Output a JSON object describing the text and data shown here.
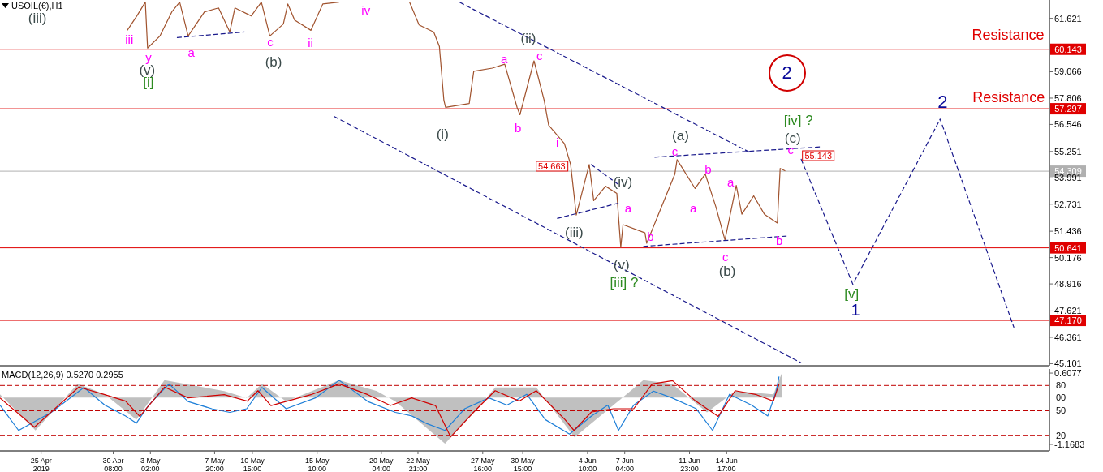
{
  "chart_data": [
    {
      "type": "line",
      "title": "USOIL(€),H1",
      "marker": "none",
      "tick_labels": "y",
      "xlim": [
        "2019-04-21T23:00",
        "2019-07-08T14:00"
      ],
      "xticks": [
        {
          "value": "2019-04-25T00:00",
          "label": null
        },
        {
          "value": "2019-04-30T08:00",
          "label": null
        },
        {
          "value": "2019-05-03T02:00",
          "label": null
        },
        {
          "value": "2019-05-07T20:00",
          "label": null
        },
        {
          "value": "2019-05-10T15:00",
          "label": null
        },
        {
          "value": "2019-05-15T10:00",
          "label": null
        },
        {
          "value": "2019-05-20T04:00",
          "label": null
        },
        {
          "value": "2019-05-22T21:00",
          "label": null
        },
        {
          "value": "2019-05-27T16:00",
          "label": null
        },
        {
          "value": "2019-05-30T15:00",
          "label": null
        },
        {
          "value": "2019-06-04T10:00",
          "label": null
        },
        {
          "value": "2019-06-07T04:00",
          "label": null
        },
        {
          "value": "2019-06-11T23:00",
          "label": null
        },
        {
          "value": "2019-06-14T17:00",
          "label": null
        }
      ],
      "ylim": [
        45.0,
        62.5
      ],
      "yticks": [
        61.621,
        59.066,
        57.806,
        56.546,
        55.251,
        53.991,
        52.731,
        51.436,
        50.176,
        48.916,
        47.621,
        46.361,
        45.101
      ],
      "ref_lines": [
        {
          "axis": "y",
          "value": 60.143,
          "label": "60.143",
          "color": "#e00000"
        },
        {
          "axis": "y",
          "value": 57.297,
          "label": "57.297",
          "color": "#e00000"
        },
        {
          "axis": "y",
          "value": 50.641,
          "label": "50.641",
          "color": "#e00000"
        },
        {
          "axis": "y",
          "value": 47.17,
          "label": "47.170",
          "color": "#e00000"
        },
        {
          "axis": "y",
          "value": 54.309,
          "label": "54.309",
          "color": "#b0b0b0"
        }
      ],
      "series": [
        {
          "type": "line",
          "color": "#a0522d",
          "line_style": "solid",
          "x": [
            "2019-05-01T09:00",
            "2019-05-02T02:00",
            "2019-05-02T17:00",
            "2019-05-02T21:00",
            "2019-05-03T19:00",
            "2019-05-04T16:00",
            "2019-05-05T06:00",
            "2019-05-05T21:00",
            "2019-05-07T02:00",
            "2019-05-08T03:00",
            "2019-05-08T23:00",
            "2019-05-09T08:00",
            "2019-05-10T13:00",
            "2019-05-11T07:00",
            "2019-05-11T22:00",
            "2019-05-12T22:00",
            "2019-05-13T06:00",
            "2019-05-13T18:00",
            "2019-05-14T23:00",
            "2019-05-15T20:00",
            "2019-05-17T01:00",
            "2019-05-20T06:00",
            "2019-05-22T06:00",
            "2019-05-22T23:00",
            "2019-05-24T01:00",
            "2019-05-24T11:00",
            "2019-05-24T19:00",
            "2019-05-24T22:00",
            "2019-05-26T16:00",
            "2019-05-27T00:00",
            "2019-05-28T09:00",
            "2019-05-29T07:00",
            "2019-05-30T05:00",
            "2019-05-30T10:00",
            "2019-05-31T11:00",
            "2019-06-01T05:00",
            "2019-06-01T13:00",
            "2019-06-02T17:00",
            "2019-06-03T04:00",
            "2019-06-03T14:00",
            "2019-06-04T13:00",
            "2019-06-04T21:00",
            "2019-06-05T18:00",
            "2019-06-06T14:00",
            "2019-06-06T21:00",
            "2019-06-07T01:00",
            "2019-06-08T16:00",
            "2019-06-08T19:00",
            "2019-06-10T21:00",
            "2019-06-11T01:00",
            "2019-06-12T09:00",
            "2019-06-13T03:00",
            "2019-06-13T22:00",
            "2019-06-14T14:00",
            "2019-06-15T10:00",
            "2019-06-15T20:00",
            "2019-06-16T17:00",
            "2019-06-17T12:00",
            "2019-06-18T11:00",
            "2019-06-18T16:00",
            "2019-06-19T01:00"
          ],
          "values": [
            61.05,
            61.74,
            62.4,
            60.2,
            60.78,
            61.93,
            62.4,
            60.78,
            61.93,
            62.12,
            60.97,
            62.12,
            61.74,
            62.4,
            60.78,
            61.35,
            62.31,
            61.54,
            61.05,
            62.31,
            62.4,
            null,
            62.4,
            61.31,
            60.97,
            60.28,
            57.7,
            57.36,
            57.55,
            59.09,
            59.24,
            59.43,
            57.36,
            57.01,
            59.59,
            57.7,
            56.51,
            55.63,
            54.63,
            52.21,
            54.63,
            52.9,
            53.59,
            53.25,
            50.67,
            51.75,
            51.36,
            50.86,
            54.17,
            54.86,
            53.48,
            54.17,
            52.59,
            51.02,
            53.63,
            52.25,
            53.13,
            52.25,
            51.83,
            54.44,
            54.32
          ]
        },
        {
          "type": "line",
          "color": "#1a1a8c",
          "line_style": "dashed",
          "x": [
            "2019-06-20T05:00",
            "2019-06-24T01:00",
            "2019-06-30T12:00",
            "2019-07-05T23:00"
          ],
          "values": [
            54.9,
            48.9,
            56.8,
            46.83
          ]
        },
        {
          "type": "line",
          "color": "#1a1a8c",
          "line_style": "dashed",
          "x": [
            "2019-05-25T23:00",
            "2019-06-16T10:00"
          ],
          "values": [
            62.39,
            55.21
          ]
        },
        {
          "type": "line",
          "color": "#1a1a8c",
          "line_style": "dashed",
          "x": [
            "2019-05-16T16:00",
            "2019-06-20T05:00"
          ],
          "values": [
            56.93,
            45.14
          ]
        },
        {
          "type": "line",
          "color": "#1a1a8c",
          "line_style": "dashed",
          "x": [
            "2019-06-09T09:00",
            "2019-06-21T15:00"
          ],
          "values": [
            54.98,
            55.47
          ]
        },
        {
          "type": "line",
          "color": "#1a1a8c",
          "line_style": "dashed",
          "x": [
            "2019-06-08T13:00",
            "2019-06-19T06:00"
          ],
          "values": [
            50.71,
            51.21
          ]
        },
        {
          "type": "line",
          "color": "#1a1a8c",
          "line_style": "dashed",
          "x": [
            "2019-05-05T01:00",
            "2019-05-10T01:00"
          ],
          "values": [
            60.7,
            60.97
          ]
        },
        {
          "type": "line",
          "color": "#1a1a8c",
          "line_style": "dashed",
          "x": [
            "2019-06-02T04:00",
            "2019-06-06T17:00"
          ],
          "values": [
            52.05,
            52.78
          ]
        },
        {
          "type": "line",
          "color": "#1a1a8c",
          "line_style": "dashed",
          "x": [
            "2019-06-04T16:00",
            "2019-06-06T17:00"
          ],
          "values": [
            54.63,
            53.67
          ]
        }
      ],
      "annotations": [
        "(iii)",
        "iii",
        "y",
        "(v)",
        "[i]",
        "a",
        "c",
        "(b)",
        "ii",
        "iv",
        "(i)",
        "a",
        "b",
        "(ii)",
        "c",
        "i",
        "54.663",
        "(iii)",
        "(iv)",
        "a",
        "b",
        "(v)",
        "[iii] ?",
        "(a)",
        "c",
        "b",
        "a",
        "a",
        "c",
        "(b)",
        "b",
        "[iv] ?",
        "(c)",
        "c",
        "55.143",
        "2",
        "2",
        "[v]",
        "1",
        "Resistance",
        "Resistance"
      ]
    },
    {
      "type": "line",
      "title": "MACD(12,26,9) 0.5270 0.2955",
      "marker": "none",
      "xlim": [
        "2019-04-21T23:00",
        "2019-07-08T14:00"
      ],
      "xticks": [
        {
          "value": "2019-04-25T00:00",
          "label": "25 Apr 2019"
        },
        {
          "value": "2019-04-30T08:00",
          "label": "30 Apr 08:00"
        },
        {
          "value": "2019-05-03T02:00",
          "label": "3 May 02:00"
        },
        {
          "value": "2019-05-07T20:00",
          "label": "7 May 20:00"
        },
        {
          "value": "2019-05-10T15:00",
          "label": "10 May 15:00"
        },
        {
          "value": "2019-05-15T10:00",
          "label": "15 May 10:00"
        },
        {
          "value": "2019-05-20T04:00",
          "label": "20 May 04:00"
        },
        {
          "value": "2019-05-22T21:00",
          "label": "22 May 21:00"
        },
        {
          "value": "2019-05-27T16:00",
          "label": "27 May 16:00"
        },
        {
          "value": "2019-05-30T15:00",
          "label": "30 May 15:00"
        },
        {
          "value": "2019-06-04T10:00",
          "label": "4 Jun 10:00"
        },
        {
          "value": "2019-06-07T04:00",
          "label": "7 Jun 04:00"
        },
        {
          "value": "2019-06-11T23:00",
          "label": "11 Jun 23:00"
        },
        {
          "value": "2019-06-14T17:00",
          "label": "14 Jun 17:00"
        }
      ],
      "ylim": [
        -1.33,
        0.71
      ],
      "yticks": [
        0.6077,
        -1.1683
      ],
      "annotations": [
        "80",
        "00",
        "50",
        "20"
      ],
      "ref_lines": [
        {
          "axis": "y",
          "value": 0.3,
          "color": "#c00000",
          "line_style": "dashed"
        },
        {
          "axis": "y",
          "value": -0.33,
          "color": "#c00000",
          "line_style": "dashed"
        },
        {
          "axis": "y",
          "value": -0.94,
          "color": "#c00000",
          "line_style": "dashed"
        }
      ],
      "series": [
        {
          "type": "area",
          "color": "#c0c0c0",
          "x": [
            "2019-04-21T23:00",
            "2019-04-24T14:00",
            "2019-04-27T17:00",
            "2019-04-29T17:00",
            "2019-05-02T01:00",
            "2019-05-04T03:00",
            "2019-05-08T13:00",
            "2019-05-10T05:00",
            "2019-05-11T08:00",
            "2019-05-13T03:00",
            "2019-05-17T01:00",
            "2019-05-19T20:00",
            "2019-05-21T05:00",
            "2019-05-24T21:00",
            "2019-05-27T01:00",
            "2019-05-28T14:00",
            "2019-05-31T15:00",
            "2019-06-03T11:00",
            "2019-06-06T08:00",
            "2019-06-08T13:00",
            "2019-06-10T16:00",
            "2019-06-13T06:00",
            "2019-06-15T08:00",
            "2019-06-18T04:00",
            "2019-06-18T19:00"
          ],
          "values": [
            0.08,
            -0.82,
            0.34,
            0.08,
            -0.55,
            0.43,
            0.16,
            -0.01,
            0.34,
            -0.1,
            0.43,
            0.16,
            -0.1,
            -1.15,
            -0.37,
            0.25,
            0.25,
            -0.99,
            -0.19,
            0.43,
            0.34,
            -0.37,
            0.16,
            0.08,
            0.61
          ]
        },
        {
          "type": "line",
          "color": "#1e7fd8",
          "line_style": "solid",
          "x": [
            "2019-04-21T23:00",
            "2019-04-23T08:00",
            "2019-04-25T18:00",
            "2019-04-28T04:00",
            "2019-04-29T17:00",
            "2019-05-01T06:00",
            "2019-05-02T01:00",
            "2019-05-02T23:00",
            "2019-05-04T11:00",
            "2019-05-05T21:00",
            "2019-05-07T15:00",
            "2019-05-08T23:00",
            "2019-05-10T05:00",
            "2019-05-11T08:00",
            "2019-05-13T03:00",
            "2019-05-15T07:00",
            "2019-05-17T01:00",
            "2019-05-19T04:00",
            "2019-05-21T05:00",
            "2019-05-22T10:00",
            "2019-05-23T11:00",
            "2019-05-24T21:00",
            "2019-05-26T08:00",
            "2019-05-28T03:00",
            "2019-05-29T11:00",
            "2019-05-30T22:00",
            "2019-06-01T07:00",
            "2019-06-03T02:00",
            "2019-06-04T17:00",
            "2019-06-05T22:00",
            "2019-06-06T17:00",
            "2019-06-07T20:00",
            "2019-06-09T07:00",
            "2019-06-10T16:00",
            "2019-06-12T11:00",
            "2019-06-13T16:00",
            "2019-06-14T22:00",
            "2019-06-16T13:00",
            "2019-06-17T18:00",
            "2019-06-18T09:00",
            "2019-06-18T14:00"
          ],
          "values": [
            -0.19,
            -0.82,
            -0.37,
            0.25,
            -0.19,
            -0.46,
            -0.64,
            -0.19,
            0.34,
            -0.1,
            -0.28,
            -0.37,
            -0.28,
            0.25,
            -0.28,
            -0.01,
            0.43,
            -0.1,
            -0.37,
            -0.46,
            -0.64,
            -0.82,
            -0.28,
            -0.01,
            -0.19,
            0.08,
            -0.55,
            -0.91,
            -0.46,
            -0.19,
            -0.82,
            -0.19,
            0.16,
            -0.01,
            -0.28,
            -0.82,
            0.08,
            -0.19,
            -0.46,
            0.16,
            0.52
          ]
        },
        {
          "type": "line",
          "color": "#d00000",
          "line_style": "solid",
          "x": [
            "2019-04-21T23:00",
            "2019-04-24T12:00",
            "2019-04-27T19:00",
            "2019-04-29T17:00",
            "2019-05-01T06:00",
            "2019-05-02T07:00",
            "2019-05-04T03:00",
            "2019-05-05T21:00",
            "2019-05-08T13:00",
            "2019-05-10T06:00",
            "2019-05-11T01:00",
            "2019-05-12T00:00",
            "2019-05-14T23:00",
            "2019-05-17T01:00",
            "2019-05-19T04:00",
            "2019-05-20T20:00",
            "2019-05-22T10:00",
            "2019-05-24T04:00",
            "2019-05-25T07:00",
            "2019-05-27T00:00",
            "2019-05-28T14:00",
            "2019-05-30T09:00",
            "2019-05-31T15:00",
            "2019-06-02T18:00",
            "2019-06-03T10:00",
            "2019-06-04T17:00",
            "2019-06-06T08:00",
            "2019-06-07T20:00",
            "2019-06-09T05:00",
            "2019-06-10T17:00",
            "2019-06-12T10:00",
            "2019-06-14T02:00",
            "2019-06-15T08:00",
            "2019-06-16T22:00",
            "2019-06-18T04:00",
            "2019-06-18T14:00"
          ],
          "values": [
            -0.01,
            -0.74,
            0.26,
            0.07,
            -0.09,
            -0.47,
            0.26,
            -0.01,
            0.07,
            -0.09,
            0.17,
            -0.2,
            0.07,
            0.34,
            0.07,
            -0.2,
            -0.01,
            -0.2,
            -0.98,
            -0.36,
            0.17,
            -0.09,
            0.17,
            -0.55,
            -0.82,
            -0.36,
            -0.28,
            -0.28,
            0.34,
            0.42,
            -0.09,
            -0.47,
            0.17,
            0.07,
            -0.09,
            0.34
          ]
        }
      ]
    }
  ]
}
